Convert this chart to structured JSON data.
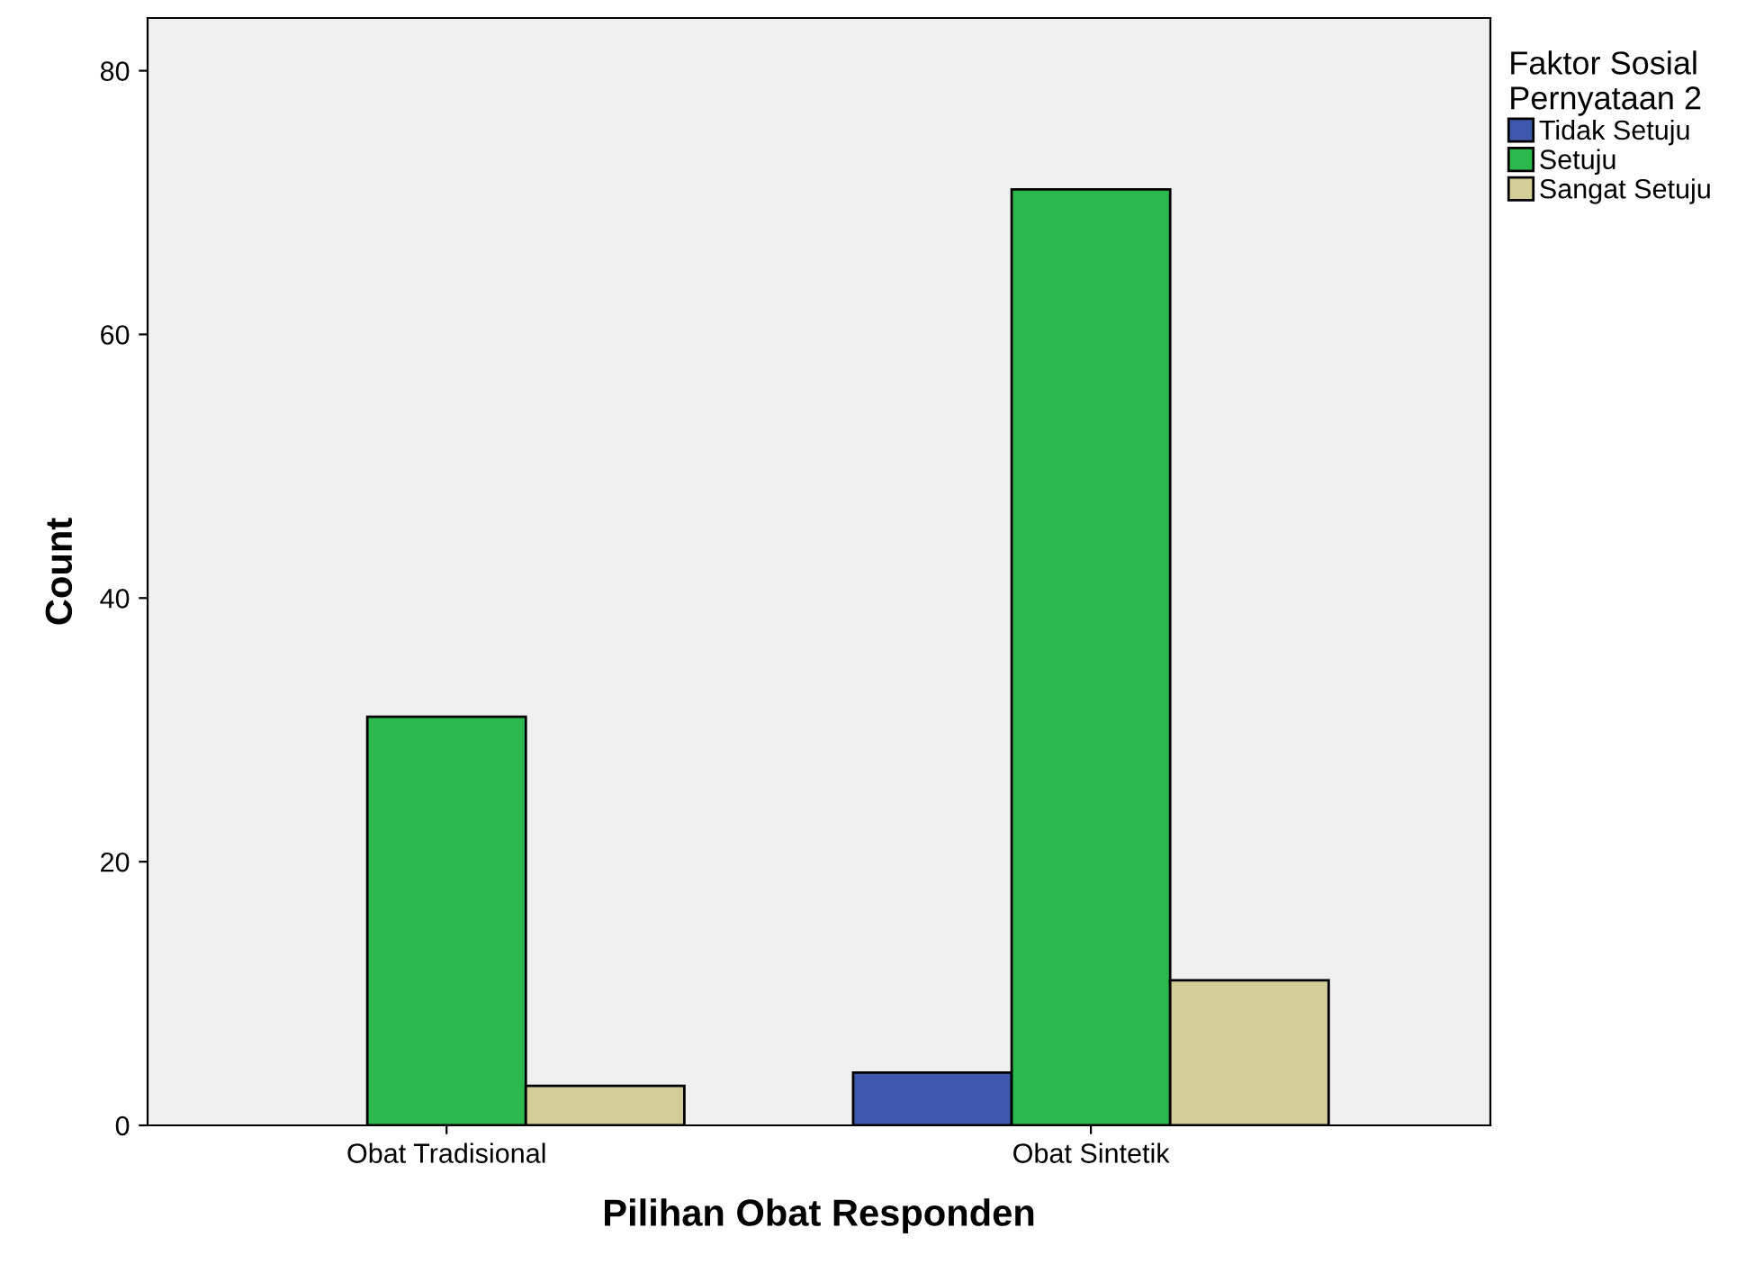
{
  "chart_data": {
    "type": "bar",
    "xlabel": "Pilihan Obat Responden",
    "ylabel": "Count",
    "legend_title": "Faktor Sosial\nPernyataan 2",
    "categories": [
      "Obat Tradisional",
      "Obat Sintetik"
    ],
    "series": [
      {
        "name": "Tidak Setuju",
        "color": "#3e58ac",
        "values": [
          null,
          4
        ]
      },
      {
        "name": "Setuju",
        "color": "#2db84d",
        "values": [
          31,
          71
        ]
      },
      {
        "name": "Sangat Setuju",
        "color": "#d3ce97",
        "values": [
          3,
          11
        ]
      }
    ],
    "ylim": [
      0,
      84
    ],
    "yticks": [
      0,
      20,
      40,
      60,
      80
    ],
    "grid": false,
    "legend": "top right"
  }
}
